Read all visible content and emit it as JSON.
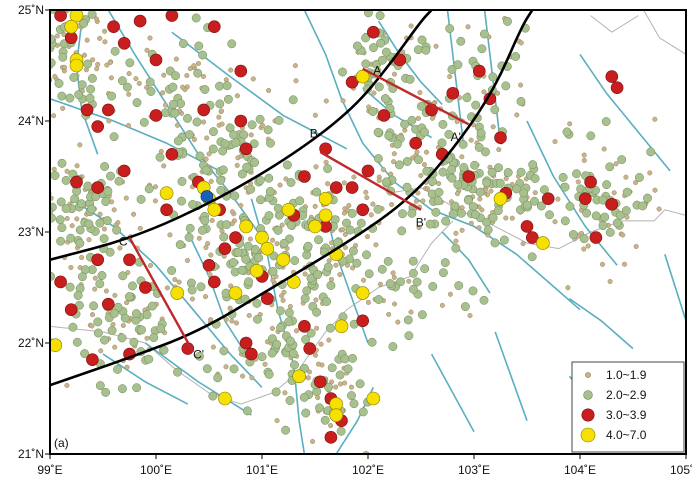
{
  "map": {
    "lon_range": [
      99,
      105
    ],
    "lat_range": [
      21,
      25
    ],
    "x_ticks": [
      {
        "lon": 99,
        "label": "99˚E"
      },
      {
        "lon": 100,
        "label": "100˚E"
      },
      {
        "lon": 101,
        "label": "101˚E"
      },
      {
        "lon": 102,
        "label": "102˚E"
      },
      {
        "lon": 103,
        "label": "103˚E"
      },
      {
        "lon": 104,
        "label": "104˚E"
      },
      {
        "lon": 105,
        "label": "105˚E"
      }
    ],
    "y_ticks": [
      {
        "lat": 21,
        "label": "21˚N"
      },
      {
        "lat": 22,
        "label": "22˚N"
      },
      {
        "lat": 23,
        "label": "23˚N"
      },
      {
        "lat": 24,
        "label": "24˚N"
      },
      {
        "lat": 25,
        "label": "25˚N"
      }
    ],
    "panel_label": "(a)",
    "colors": {
      "frame": "#000000",
      "fault": "#5aaec0",
      "border": "#b4b4b4",
      "arc": "#000000",
      "profile": "#c0282c",
      "mag_small": "#c8b48a",
      "mag_med": "#a7c08e",
      "mag_large": "#c81e1e",
      "mag_major": "#f5e000",
      "special": "#1a5fb4"
    },
    "profiles": [
      {
        "name": "A",
        "start_label": "A",
        "end_label": "A'",
        "start": [
          101.95,
          24.47
        ],
        "end": [
          102.95,
          23.97
        ],
        "start_label_pos": [
          102.05,
          24.42
        ],
        "end_label_pos": [
          102.78,
          23.82
        ]
      },
      {
        "name": "B",
        "start_label": "B",
        "end_label": "B'",
        "start": [
          101.55,
          23.72
        ],
        "end": [
          102.5,
          23.2
        ],
        "start_label_pos": [
          101.45,
          23.85
        ],
        "end_label_pos": [
          102.45,
          23.05
        ]
      },
      {
        "name": "C",
        "start_label": "C",
        "end_label": "C'",
        "start": [
          99.75,
          22.95
        ],
        "end": [
          100.35,
          21.92
        ],
        "start_label_pos": [
          99.65,
          22.88
        ],
        "end_label_pos": [
          100.35,
          21.86
        ]
      }
    ],
    "arcs": [
      [
        [
          99.0,
          22.75
        ],
        [
          99.8,
          22.95
        ],
        [
          100.6,
          23.3
        ],
        [
          101.3,
          23.7
        ],
        [
          101.85,
          24.1
        ],
        [
          102.2,
          24.5
        ],
        [
          102.5,
          24.9
        ],
        [
          102.6,
          25.0
        ]
      ],
      [
        [
          99.0,
          21.62
        ],
        [
          99.7,
          21.85
        ],
        [
          100.4,
          22.1
        ],
        [
          101.1,
          22.5
        ],
        [
          101.8,
          22.9
        ],
        [
          102.4,
          23.3
        ],
        [
          102.85,
          23.8
        ],
        [
          103.2,
          24.3
        ],
        [
          103.45,
          24.85
        ],
        [
          103.55,
          25.0
        ]
      ]
    ],
    "borders": [
      [
        [
          102.2,
          23.35
        ],
        [
          102.5,
          23.4
        ],
        [
          102.85,
          23.2
        ],
        [
          103.2,
          23.05
        ],
        [
          103.5,
          22.9
        ],
        [
          103.8,
          22.85
        ],
        [
          104.1,
          23.0
        ],
        [
          104.4,
          23.1
        ],
        [
          104.7,
          23.1
        ],
        [
          104.8,
          23.2
        ],
        [
          105.0,
          23.15
        ]
      ],
      [
        [
          99.0,
          22.15
        ],
        [
          99.5,
          22.1
        ],
        [
          99.9,
          22.0
        ],
        [
          100.2,
          21.75
        ],
        [
          100.5,
          21.55
        ],
        [
          100.8,
          21.45
        ],
        [
          101.1,
          21.55
        ],
        [
          101.3,
          21.7
        ],
        [
          101.6,
          22.1
        ],
        [
          101.8,
          22.3
        ],
        [
          102.1,
          22.5
        ],
        [
          102.4,
          22.6
        ],
        [
          102.6,
          22.9
        ],
        [
          102.8,
          23.1
        ]
      ],
      [
        [
          104.6,
          25.0
        ],
        [
          104.75,
          24.75
        ],
        [
          105.0,
          24.6
        ]
      ],
      [
        [
          104.1,
          24.95
        ],
        [
          104.3,
          24.8
        ],
        [
          104.55,
          24.95
        ]
      ]
    ],
    "faults": [
      [
        [
          99.55,
          25.0
        ],
        [
          99.8,
          24.6
        ],
        [
          100.1,
          24.15
        ],
        [
          100.4,
          23.7
        ],
        [
          100.7,
          23.35
        ],
        [
          101.0,
          22.95
        ]
      ],
      [
        [
          99.0,
          24.2
        ],
        [
          99.6,
          24.0
        ],
        [
          100.1,
          23.8
        ],
        [
          100.6,
          23.55
        ]
      ],
      [
        [
          101.4,
          25.0
        ],
        [
          101.6,
          24.6
        ],
        [
          101.75,
          24.2
        ],
        [
          101.95,
          23.8
        ],
        [
          102.25,
          23.45
        ],
        [
          102.6,
          23.2
        ],
        [
          103.0,
          23.05
        ],
        [
          103.4,
          22.8
        ],
        [
          103.7,
          22.55
        ],
        [
          104.0,
          22.3
        ]
      ],
      [
        [
          102.75,
          25.0
        ],
        [
          102.8,
          24.6
        ],
        [
          102.85,
          24.2
        ],
        [
          102.9,
          23.8
        ]
      ],
      [
        [
          103.1,
          25.0
        ],
        [
          103.15,
          24.6
        ],
        [
          103.2,
          24.2
        ],
        [
          103.25,
          23.8
        ]
      ],
      [
        [
          100.15,
          24.8
        ],
        [
          100.7,
          24.4
        ],
        [
          101.2,
          24.05
        ],
        [
          101.8,
          23.75
        ]
      ],
      [
        [
          99.2,
          23.3
        ],
        [
          99.6,
          23.05
        ],
        [
          100.0,
          22.7
        ],
        [
          100.35,
          22.3
        ],
        [
          100.7,
          21.9
        ],
        [
          101.0,
          21.6
        ]
      ],
      [
        [
          100.9,
          23.3
        ],
        [
          101.05,
          22.8
        ],
        [
          101.15,
          22.3
        ],
        [
          101.3,
          21.8
        ],
        [
          101.35,
          21.3
        ],
        [
          101.4,
          21.0
        ]
      ],
      [
        [
          101.6,
          23.2
        ],
        [
          101.7,
          22.8
        ],
        [
          101.85,
          22.4
        ],
        [
          102.0,
          22.0
        ]
      ],
      [
        [
          103.5,
          24.0
        ],
        [
          103.75,
          23.5
        ],
        [
          104.05,
          23.05
        ],
        [
          104.35,
          22.7
        ]
      ],
      [
        [
          104.0,
          24.6
        ],
        [
          104.25,
          24.25
        ],
        [
          104.55,
          23.9
        ],
        [
          104.85,
          23.55
        ]
      ],
      [
        [
          103.9,
          22.4
        ],
        [
          104.2,
          22.2
        ],
        [
          104.5,
          21.95
        ]
      ],
      [
        [
          103.2,
          22.1
        ],
        [
          103.35,
          21.7
        ],
        [
          103.5,
          21.3
        ]
      ],
      [
        [
          103.9,
          21.7
        ],
        [
          104.15,
          21.45
        ],
        [
          104.45,
          21.2
        ]
      ],
      [
        [
          104.8,
          22.8
        ],
        [
          104.9,
          22.5
        ],
        [
          105.0,
          22.2
        ]
      ],
      [
        [
          104.5,
          21.7
        ],
        [
          104.7,
          21.5
        ],
        [
          104.9,
          21.25
        ]
      ],
      [
        [
          102.6,
          21.9
        ],
        [
          102.8,
          21.55
        ],
        [
          103.0,
          21.2
        ]
      ],
      [
        [
          99.5,
          21.9
        ],
        [
          99.9,
          21.65
        ],
        [
          100.3,
          21.45
        ]
      ],
      [
        [
          101.7,
          21.0
        ],
        [
          101.9,
          21.3
        ],
        [
          102.05,
          21.6
        ]
      ],
      [
        [
          99.3,
          24.9
        ],
        [
          99.25,
          24.5
        ],
        [
          99.3,
          24.1
        ],
        [
          99.45,
          23.7
        ]
      ],
      [
        [
          102.1,
          24.9
        ],
        [
          102.3,
          24.6
        ],
        [
          102.5,
          24.35
        ],
        [
          102.7,
          24.15
        ]
      ],
      [
        [
          99.9,
          22.0
        ],
        [
          100.4,
          21.65
        ],
        [
          100.9,
          21.35
        ]
      ],
      [
        [
          102.7,
          23.0
        ],
        [
          102.95,
          22.75
        ],
        [
          103.15,
          22.45
        ]
      ],
      [
        [
          100.3,
          23.0
        ],
        [
          100.5,
          22.6
        ],
        [
          100.65,
          22.2
        ],
        [
          100.85,
          21.9
        ]
      ],
      [
        [
          101.95,
          24.3
        ],
        [
          102.25,
          24.05
        ],
        [
          102.6,
          23.85
        ]
      ]
    ],
    "clusters": [
      {
        "lon": 99.2,
        "lat": 24.6,
        "sx": 0.22,
        "sy": 0.3,
        "n": 90
      },
      {
        "lon": 99.35,
        "lat": 23.25,
        "sx": 0.22,
        "sy": 0.28,
        "n": 100
      },
      {
        "lon": 99.75,
        "lat": 22.25,
        "sx": 0.3,
        "sy": 0.3,
        "n": 110
      },
      {
        "lon": 100.6,
        "lat": 23.65,
        "sx": 0.35,
        "sy": 0.3,
        "n": 120
      },
      {
        "lon": 100.9,
        "lat": 22.75,
        "sx": 0.35,
        "sy": 0.35,
        "n": 140
      },
      {
        "lon": 101.55,
        "lat": 23.0,
        "sx": 0.3,
        "sy": 0.3,
        "n": 110
      },
      {
        "lon": 101.2,
        "lat": 21.9,
        "sx": 0.3,
        "sy": 0.3,
        "n": 80
      },
      {
        "lon": 102.15,
        "lat": 24.45,
        "sx": 0.3,
        "sy": 0.3,
        "n": 80
      },
      {
        "lon": 102.5,
        "lat": 23.65,
        "sx": 0.3,
        "sy": 0.3,
        "n": 100
      },
      {
        "lon": 103.15,
        "lat": 23.35,
        "sx": 0.3,
        "sy": 0.22,
        "n": 110
      },
      {
        "lon": 104.2,
        "lat": 23.3,
        "sx": 0.28,
        "sy": 0.3,
        "n": 90
      },
      {
        "lon": 101.7,
        "lat": 21.5,
        "sx": 0.2,
        "sy": 0.2,
        "n": 40
      },
      {
        "lon": 102.3,
        "lat": 22.4,
        "sx": 0.3,
        "sy": 0.2,
        "n": 40
      },
      {
        "lon": 100.2,
        "lat": 24.3,
        "sx": 0.3,
        "sy": 0.3,
        "n": 60
      },
      {
        "lon": 103.1,
        "lat": 24.3,
        "sx": 0.25,
        "sy": 0.35,
        "n": 50
      }
    ],
    "large_events": [
      [
        99.1,
        24.95
      ],
      [
        99.2,
        24.75
      ],
      [
        99.6,
        24.85
      ],
      [
        99.7,
        24.7
      ],
      [
        99.85,
        24.9
      ],
      [
        100.0,
        24.55
      ],
      [
        100.15,
        24.95
      ],
      [
        100.55,
        24.85
      ],
      [
        100.8,
        24.45
      ],
      [
        99.35,
        24.1
      ],
      [
        99.45,
        23.95
      ],
      [
        99.25,
        23.45
      ],
      [
        99.45,
        23.4
      ],
      [
        99.7,
        23.55
      ],
      [
        100.0,
        24.05
      ],
      [
        100.45,
        24.1
      ],
      [
        100.15,
        23.7
      ],
      [
        100.4,
        23.45
      ],
      [
        100.85,
        23.75
      ],
      [
        99.45,
        22.75
      ],
      [
        99.75,
        22.75
      ],
      [
        99.9,
        22.5
      ],
      [
        99.55,
        22.35
      ],
      [
        99.2,
        22.3
      ],
      [
        100.5,
        22.7
      ],
      [
        100.55,
        22.55
      ],
      [
        100.75,
        22.95
      ],
      [
        100.65,
        22.85
      ],
      [
        101.0,
        22.6
      ],
      [
        101.3,
        23.15
      ],
      [
        101.6,
        23.05
      ],
      [
        101.7,
        23.4
      ],
      [
        101.4,
        23.5
      ],
      [
        101.2,
        22.75
      ],
      [
        101.05,
        22.4
      ],
      [
        101.4,
        22.15
      ],
      [
        101.45,
        21.95
      ],
      [
        100.85,
        22.0
      ],
      [
        100.9,
        21.9
      ],
      [
        101.95,
        22.2
      ],
      [
        101.55,
        21.65
      ],
      [
        101.65,
        21.5
      ],
      [
        101.75,
        21.3
      ],
      [
        101.65,
        21.15
      ],
      [
        102.05,
        24.8
      ],
      [
        102.3,
        24.55
      ],
      [
        102.6,
        24.1
      ],
      [
        102.8,
        24.25
      ],
      [
        103.05,
        24.45
      ],
      [
        103.15,
        24.2
      ],
      [
        103.25,
        23.85
      ],
      [
        102.45,
        23.8
      ],
      [
        102.7,
        23.7
      ],
      [
        102.95,
        23.5
      ],
      [
        103.3,
        23.35
      ],
      [
        103.5,
        23.05
      ],
      [
        103.7,
        23.3
      ],
      [
        103.55,
        22.95
      ],
      [
        104.05,
        23.3
      ],
      [
        104.15,
        22.95
      ],
      [
        104.3,
        23.25
      ],
      [
        102.0,
        23.55
      ],
      [
        101.85,
        23.4
      ],
      [
        101.95,
        23.2
      ],
      [
        99.1,
        22.55
      ],
      [
        99.4,
        21.85
      ],
      [
        101.6,
        23.75
      ],
      [
        100.8,
        24.0
      ],
      [
        102.15,
        24.05
      ],
      [
        104.3,
        24.4
      ],
      [
        104.35,
        24.3
      ],
      [
        104.1,
        23.45
      ],
      [
        99.25,
        24.55
      ],
      [
        99.55,
        24.1
      ],
      [
        100.1,
        23.2
      ],
      [
        100.6,
        23.2
      ],
      [
        101.85,
        24.35
      ],
      [
        100.3,
        21.95
      ],
      [
        99.75,
        21.9
      ]
    ],
    "major_events": [
      [
        99.25,
        24.95
      ],
      [
        99.2,
        24.85
      ],
      [
        99.25,
        24.55
      ],
      [
        99.05,
        21.98
      ],
      [
        100.1,
        23.35
      ],
      [
        100.45,
        23.4
      ],
      [
        100.5,
        23.3
      ],
      [
        100.55,
        23.2
      ],
      [
        100.2,
        22.45
      ],
      [
        100.85,
        23.05
      ],
      [
        101.0,
        22.95
      ],
      [
        101.05,
        22.85
      ],
      [
        101.2,
        22.75
      ],
      [
        101.3,
        22.55
      ],
      [
        100.95,
        22.65
      ],
      [
        100.75,
        22.45
      ],
      [
        101.25,
        23.2
      ],
      [
        101.6,
        23.3
      ],
      [
        101.6,
        23.15
      ],
      [
        101.5,
        23.05
      ],
      [
        101.7,
        22.8
      ],
      [
        101.95,
        22.45
      ],
      [
        101.75,
        22.15
      ],
      [
        101.35,
        21.7
      ],
      [
        101.7,
        21.45
      ],
      [
        101.7,
        21.35
      ],
      [
        102.05,
        21.5
      ],
      [
        100.65,
        21.5
      ],
      [
        101.95,
        24.4
      ],
      [
        103.25,
        23.3
      ],
      [
        103.65,
        22.9
      ],
      [
        99.25,
        24.5
      ]
    ],
    "special_event": [
      100.48,
      23.32
    ],
    "legend": [
      {
        "label": "1.0~1.9",
        "class": "mag_small"
      },
      {
        "label": "2.0~2.9",
        "class": "mag_med"
      },
      {
        "label": "3.0~3.9",
        "class": "mag_large"
      },
      {
        "label": "4.0~7.0",
        "class": "mag_major"
      }
    ]
  }
}
